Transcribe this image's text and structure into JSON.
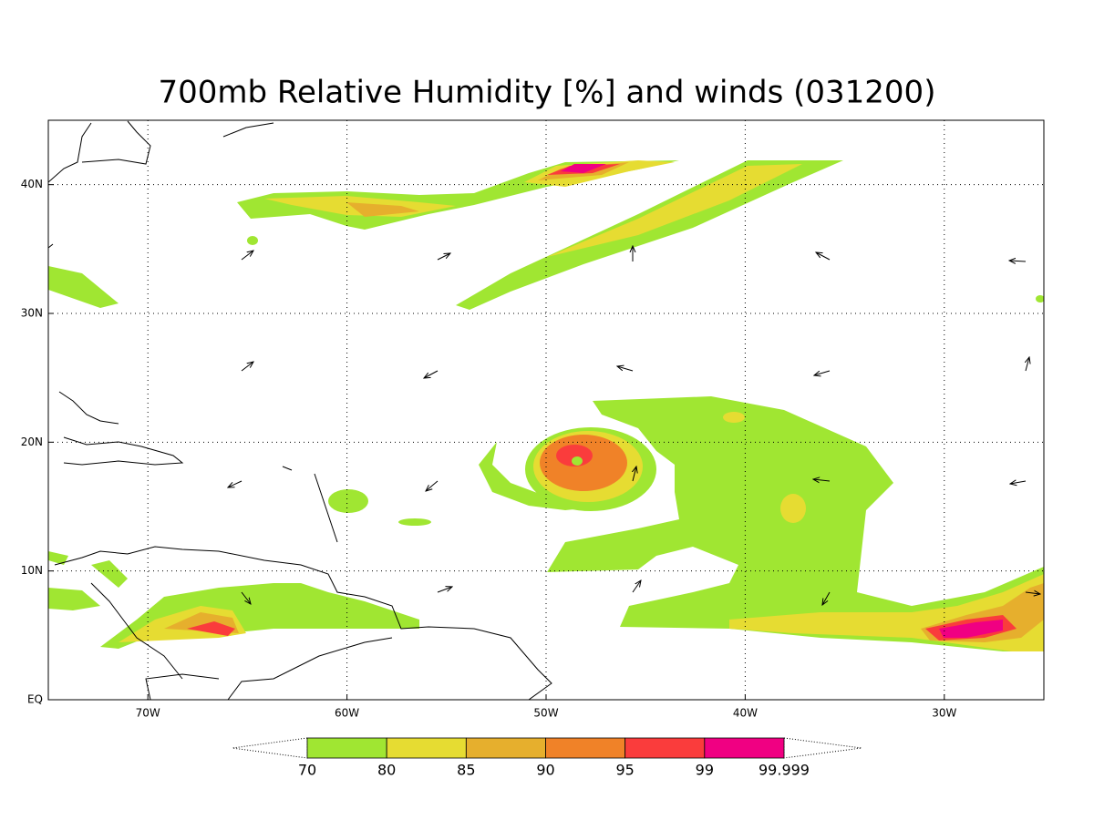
{
  "title": "700mb Relative Humidity [%] and winds (031200)",
  "map": {
    "lon_range": [
      -75,
      -25
    ],
    "lat_range": [
      0,
      45
    ],
    "lon_ticks": [
      {
        "value": -70,
        "label": "70W"
      },
      {
        "value": -60,
        "label": "60W"
      },
      {
        "value": -50,
        "label": "50W"
      },
      {
        "value": -40,
        "label": "40W"
      },
      {
        "value": -30,
        "label": "30W"
      }
    ],
    "lat_ticks": [
      {
        "value": 0,
        "label": "EQ"
      },
      {
        "value": 10,
        "label": "10N"
      },
      {
        "value": 20,
        "label": "20N"
      },
      {
        "value": 30,
        "label": "30N"
      },
      {
        "value": 40,
        "label": "40N"
      }
    ]
  },
  "colorbar": {
    "levels": [
      70,
      80,
      85,
      90,
      95,
      99,
      99.999
    ],
    "colors": [
      "#a0e632",
      "#e6dc32",
      "#e6af2d",
      "#f08228",
      "#fa3c3c",
      "#f00082"
    ]
  }
}
